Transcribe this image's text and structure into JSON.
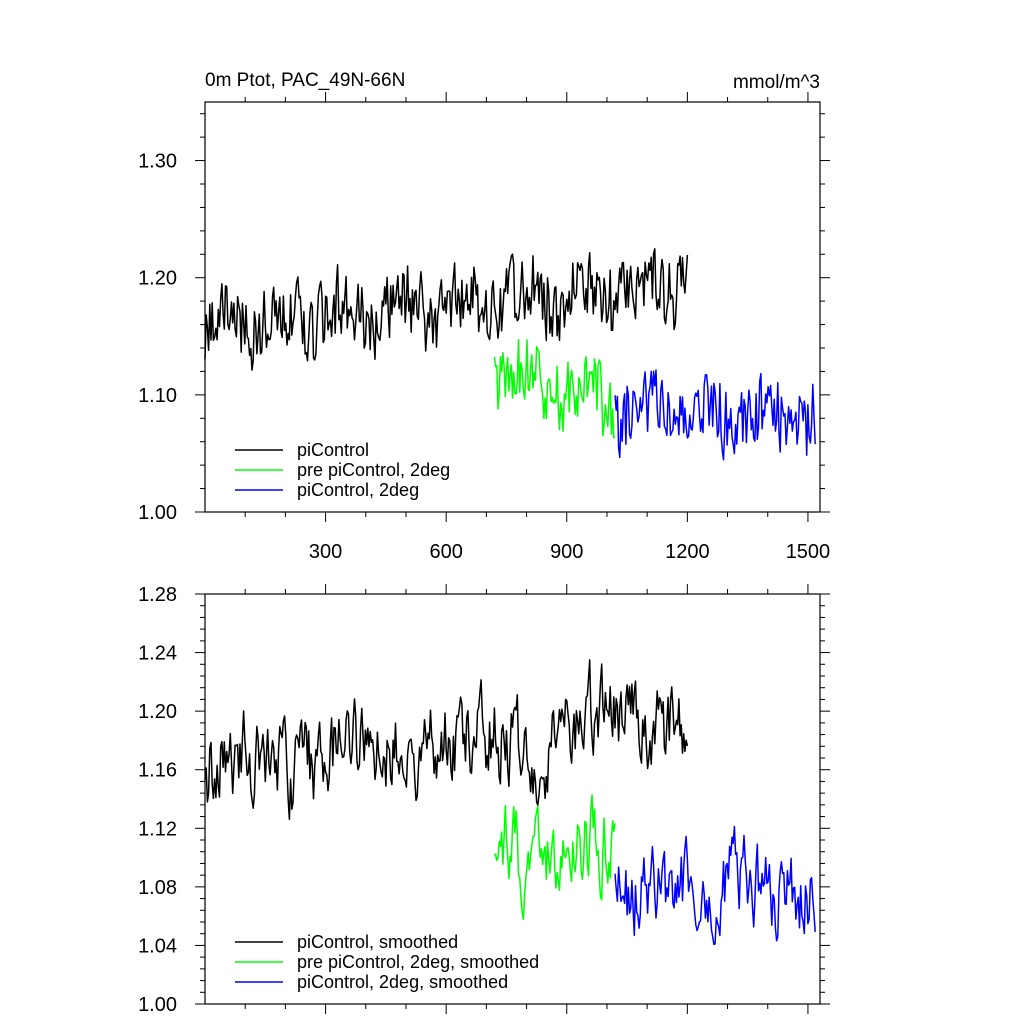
{
  "chart_data": [
    {
      "type": "line",
      "title": "0m Ptot, PAC_49N-66N",
      "units": "mmol/m^3",
      "xlim": [
        0,
        1530
      ],
      "ylim": [
        1.0,
        1.35
      ],
      "xticks": [
        300,
        600,
        900,
        1200,
        1500
      ],
      "xtick_labels": [
        "300",
        "600",
        "900",
        "1200",
        "1500"
      ],
      "yticks": [
        1.0,
        1.1,
        1.2,
        1.3
      ],
      "ytick_labels": [
        "1.00",
        "1.10",
        "1.20",
        "1.30"
      ],
      "legend_position": "bottom-left",
      "series": [
        {
          "name": "piControl",
          "color": "#000000",
          "x": [
            0,
            1200
          ],
          "baseline": [
            1.16,
            1.195
          ],
          "spread": 0.03,
          "period": 6,
          "seed": 3
        },
        {
          "name": "pre piControl, 2deg",
          "color": "#00ff00",
          "x": [
            720,
            1020
          ],
          "baseline": [
            1.12,
            1.095
          ],
          "spread": 0.03,
          "period": 6,
          "seed": 7
        },
        {
          "name": "piControl, 2deg",
          "color": "#0000ff",
          "x": [
            1020,
            1520
          ],
          "baseline": [
            1.085,
            1.08
          ],
          "spread": 0.03,
          "period": 6,
          "seed": 11
        }
      ]
    },
    {
      "type": "line",
      "title": "",
      "xlim": [
        0,
        1530
      ],
      "ylim": [
        1.0,
        1.28
      ],
      "xticks": [
        300,
        600,
        900,
        1200,
        1500
      ],
      "xtick_labels": [],
      "yticks": [
        1.0,
        1.04,
        1.08,
        1.12,
        1.16,
        1.2,
        1.24,
        1.28
      ],
      "ytick_labels": [
        "1.00",
        "1.04",
        "1.08",
        "1.12",
        "1.16",
        "1.20",
        "1.24",
        "1.28"
      ],
      "legend_position": "bottom-left",
      "series": [
        {
          "name": "piControl, smoothed",
          "color": "#000000",
          "x": [
            0,
            1200
          ],
          "baseline": [
            1.16,
            1.195
          ],
          "spread": 0.024,
          "period": 12,
          "seed": 13
        },
        {
          "name": "pre piControl, 2deg, smoothed",
          "color": "#00ff00",
          "x": [
            720,
            1020
          ],
          "baseline": [
            1.11,
            1.1
          ],
          "spread": 0.024,
          "period": 12,
          "seed": 17
        },
        {
          "name": "piControl, 2deg, smoothed",
          "color": "#0000ff",
          "x": [
            1020,
            1520
          ],
          "baseline": [
            1.075,
            1.08
          ],
          "spread": 0.024,
          "period": 12,
          "seed": 19
        }
      ]
    }
  ]
}
